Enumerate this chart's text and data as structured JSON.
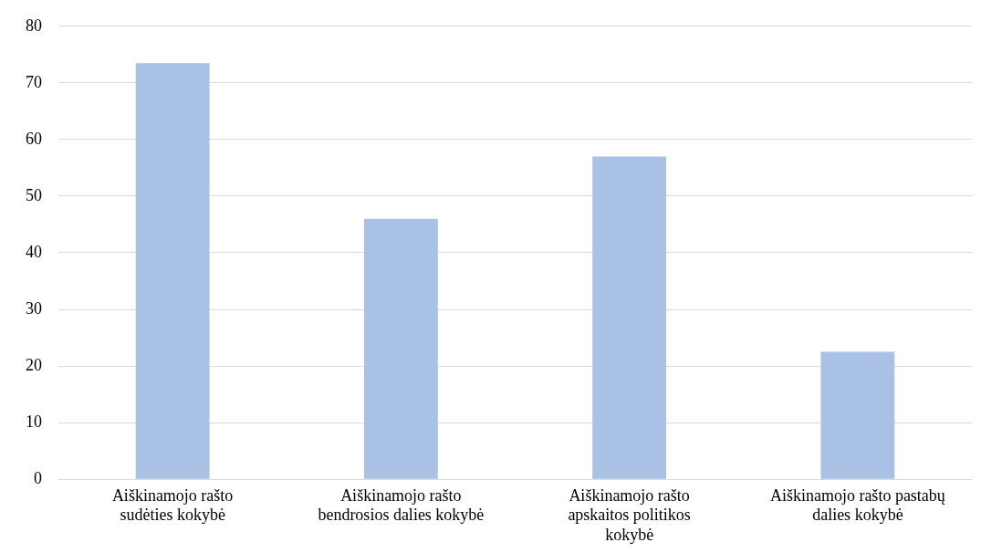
{
  "chart_data": {
    "type": "bar",
    "categories": [
      "Aiškinamojo rašto sudėties kokybė",
      "Aiškinamojo rašto bendrosios dalies kokybė",
      "Aiškinamojo rašto apskaitos politikos kokybė",
      "Aiškinamojo rašto pastabų dalies kokybė"
    ],
    "values": [
      73.5,
      46,
      57,
      22.5
    ],
    "color": "#a9c1e4",
    "ylim": [
      0,
      80
    ],
    "yticks": [
      0,
      10,
      20,
      30,
      40,
      50,
      60,
      70,
      80
    ],
    "grid": "y",
    "legend": false
  }
}
